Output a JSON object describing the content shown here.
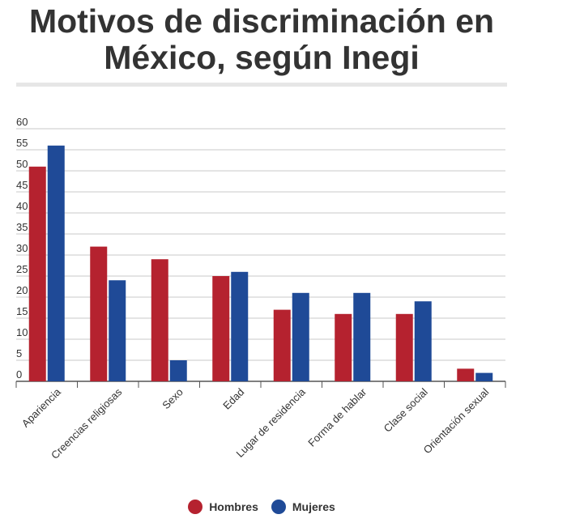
{
  "title": "Motivos de discriminación en México, según Inegi",
  "legend": [
    {
      "name": "Hombres",
      "color": "#b5222f"
    },
    {
      "name": "Mujeres",
      "color": "#1f4a97"
    }
  ],
  "chart_data": {
    "type": "bar",
    "title": "Motivos de discriminación en México, según Inegi",
    "categories": [
      "Apariencia",
      "Creencias religiosas",
      "Sexo",
      "Edad",
      "Lugar de residencia",
      "Forma de hablar",
      "Clase social",
      "Orientación sexual"
    ],
    "series": [
      {
        "name": "Hombres",
        "color": "#b5222f",
        "values": [
          51,
          32,
          29,
          25,
          17,
          16,
          16,
          3
        ]
      },
      {
        "name": "Mujeres",
        "color": "#1f4a97",
        "values": [
          56,
          24,
          5,
          26,
          21,
          21,
          19,
          2
        ]
      }
    ],
    "yticks": [
      0,
      5,
      10,
      15,
      20,
      25,
      30,
      35,
      40,
      45,
      50,
      55,
      60
    ],
    "ylim": [
      0,
      60
    ],
    "grid": true,
    "legend_position": "bottom"
  }
}
